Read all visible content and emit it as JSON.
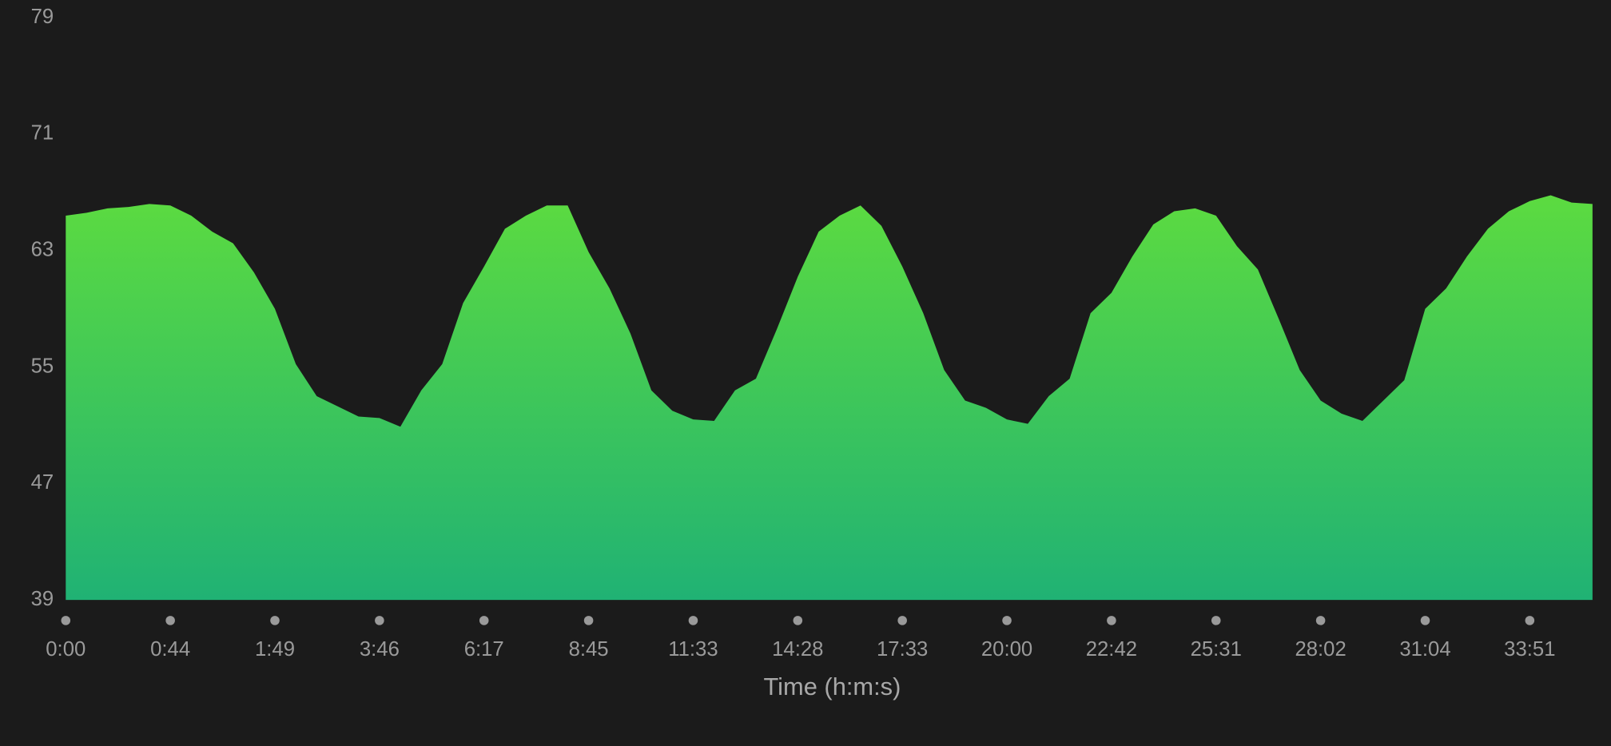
{
  "chart_data": {
    "type": "area",
    "x_label": "Time (h:m:s)",
    "categories": [
      "0:00",
      null,
      null,
      null,
      null,
      "0:44",
      null,
      null,
      null,
      null,
      "1:49",
      null,
      null,
      null,
      null,
      "3:46",
      null,
      null,
      null,
      null,
      "6:17",
      null,
      null,
      null,
      null,
      "8:45",
      null,
      null,
      null,
      null,
      "11:33",
      null,
      null,
      null,
      null,
      "14:28",
      null,
      null,
      null,
      null,
      "17:33",
      null,
      null,
      null,
      null,
      "20:00",
      null,
      null,
      null,
      null,
      "22:42",
      null,
      null,
      null,
      null,
      "25:31",
      null,
      null,
      null,
      null,
      "28:02",
      null,
      null,
      null,
      null,
      "31:04",
      null,
      null,
      null,
      null,
      "33:51",
      null,
      null,
      null
    ],
    "series": [
      {
        "color": "#5cdb40",
        "gradient_to": "#20b274",
        "values": [
          65.4,
          65.6,
          65.9,
          66.0,
          66.2,
          66.1,
          65.4,
          64.3,
          63.5,
          61.5,
          59.0,
          55.2,
          53.0,
          52.3,
          51.6,
          51.5,
          50.9,
          53.4,
          55.2,
          59.4,
          61.9,
          64.5,
          65.4,
          66.1,
          66.1,
          62.9,
          60.4,
          57.3,
          53.4,
          52.0,
          51.4,
          51.3,
          53.4,
          54.2,
          57.6,
          61.2,
          64.3,
          65.4,
          66.1,
          64.7,
          61.9,
          58.7,
          54.8,
          52.7,
          52.2,
          51.4,
          51.1,
          53.0,
          54.2,
          58.7,
          60.1,
          62.6,
          64.8,
          65.7,
          65.9,
          65.4,
          63.3,
          61.7,
          58.3,
          54.8,
          52.7,
          51.8,
          51.3,
          52.7,
          54.1,
          59.0,
          60.4,
          62.6,
          64.5,
          65.7,
          66.4,
          66.8,
          66.3,
          66.2
        ]
      }
    ],
    "ylim": [
      39,
      79
    ],
    "yticks": [
      39,
      47,
      55,
      63,
      71,
      79
    ]
  }
}
